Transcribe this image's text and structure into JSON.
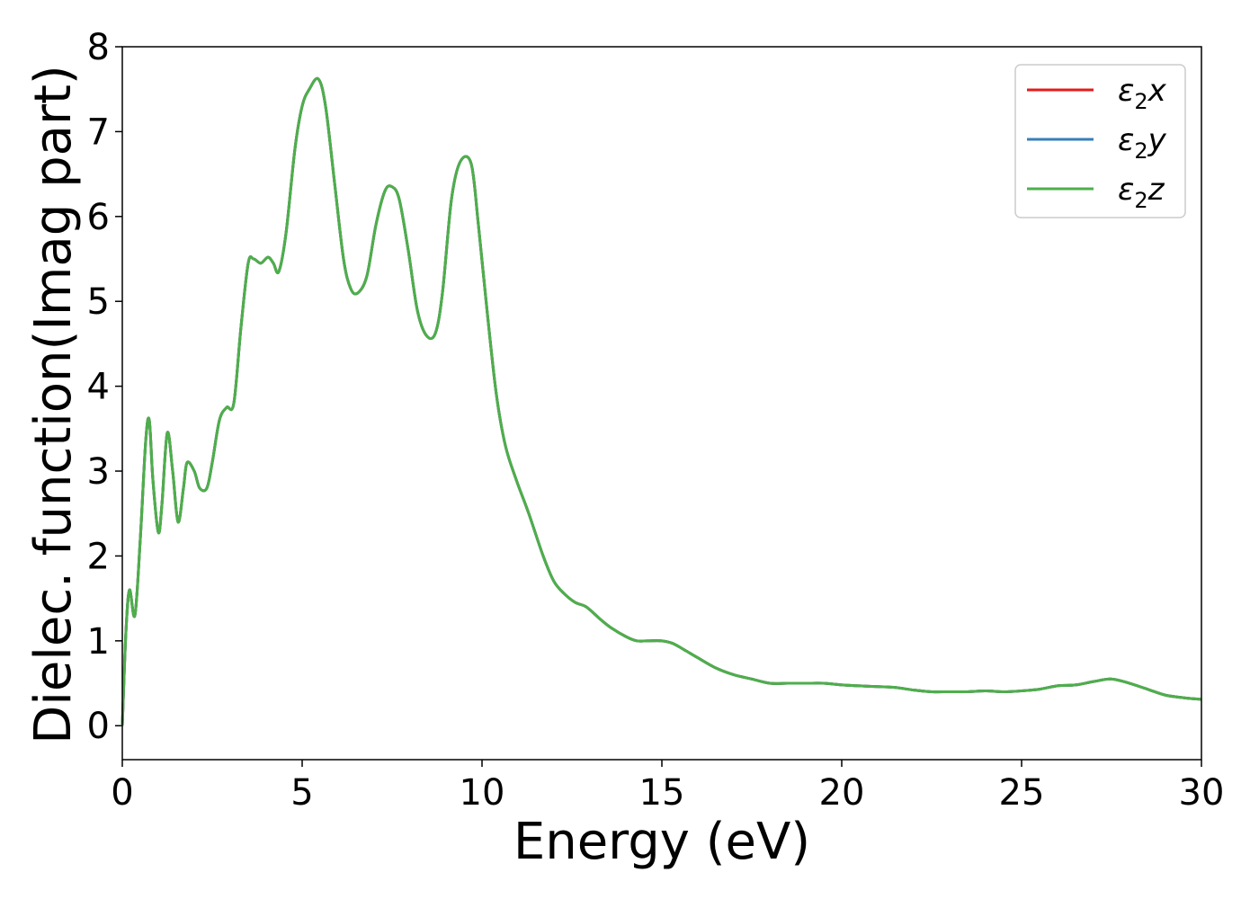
{
  "chart_data": {
    "type": "line",
    "xlabel": "Energy (eV)",
    "ylabel": "Dielec. function(Imag part)",
    "xlim": [
      0,
      30
    ],
    "ylim": [
      -0.4,
      8
    ],
    "xticks": [
      "0",
      "5",
      "10",
      "15",
      "20",
      "25",
      "30"
    ],
    "yticks": [
      "0",
      "1",
      "2",
      "3",
      "4",
      "5",
      "6",
      "7",
      "8"
    ],
    "grid": false,
    "legend_position": "top-right",
    "legend_note": "ε2x and ε2y lie underneath ε2z (identical curves)",
    "series": [
      {
        "name": "ε2x",
        "legend_base": "ε",
        "legend_sub": "2",
        "legend_var": "x",
        "color": "#e41a1c"
      },
      {
        "name": "ε2y",
        "legend_base": "ε",
        "legend_sub": "2",
        "legend_var": "y",
        "color": "#377eb8"
      },
      {
        "name": "ε2z",
        "legend_base": "ε",
        "legend_sub": "2",
        "legend_var": "z",
        "color": "#4daf4a"
      }
    ],
    "x": [
      0.0,
      0.1,
      0.2,
      0.35,
      0.5,
      0.65,
      0.75,
      0.85,
      1.0,
      1.1,
      1.25,
      1.4,
      1.55,
      1.7,
      1.8,
      2.0,
      2.15,
      2.35,
      2.5,
      2.7,
      2.9,
      3.1,
      3.3,
      3.5,
      3.65,
      3.85,
      4.05,
      4.2,
      4.35,
      4.55,
      4.8,
      5.0,
      5.2,
      5.45,
      5.65,
      5.9,
      6.15,
      6.35,
      6.55,
      6.8,
      7.05,
      7.3,
      7.5,
      7.7,
      7.95,
      8.2,
      8.45,
      8.7,
      8.9,
      9.15,
      9.4,
      9.7,
      9.9,
      10.15,
      10.4,
      10.65,
      10.95,
      11.3,
      11.7,
      12.0,
      12.3,
      12.6,
      12.9,
      13.3,
      13.6,
      14.0,
      14.3,
      14.6,
      15.0,
      15.3,
      15.6,
      16.0,
      16.5,
      17.0,
      17.5,
      18.0,
      18.5,
      19.0,
      19.5,
      20.0,
      20.5,
      21.0,
      21.5,
      22.0,
      22.5,
      23.0,
      23.5,
      24.0,
      24.5,
      25.0,
      25.5,
      26.0,
      26.5,
      27.0,
      27.5,
      28.0,
      28.5,
      29.0,
      29.5,
      30.0
    ],
    "y": [
      0.0,
      1.1,
      1.6,
      1.3,
      2.2,
      3.35,
      3.6,
      2.9,
      2.28,
      2.6,
      3.45,
      3.0,
      2.4,
      2.8,
      3.1,
      3.0,
      2.8,
      2.8,
      3.1,
      3.6,
      3.75,
      3.8,
      4.7,
      5.45,
      5.5,
      5.45,
      5.52,
      5.45,
      5.35,
      5.8,
      6.8,
      7.3,
      7.5,
      7.62,
      7.3,
      6.4,
      5.5,
      5.15,
      5.1,
      5.3,
      5.9,
      6.3,
      6.35,
      6.2,
      5.6,
      4.9,
      4.6,
      4.62,
      5.1,
      6.2,
      6.65,
      6.62,
      5.9,
      4.85,
      3.9,
      3.3,
      2.9,
      2.5,
      2.0,
      1.7,
      1.55,
      1.45,
      1.4,
      1.25,
      1.15,
      1.05,
      1.0,
      1.0,
      1.0,
      0.97,
      0.9,
      0.8,
      0.68,
      0.6,
      0.55,
      0.5,
      0.5,
      0.5,
      0.5,
      0.48,
      0.47,
      0.46,
      0.45,
      0.42,
      0.4,
      0.4,
      0.4,
      0.41,
      0.4,
      0.41,
      0.43,
      0.47,
      0.48,
      0.52,
      0.55,
      0.5,
      0.43,
      0.36,
      0.33,
      0.31
    ]
  }
}
